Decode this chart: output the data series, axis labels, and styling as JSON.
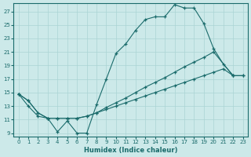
{
  "xlabel": "Humidex (Indice chaleur)",
  "background_color": "#cce9e9",
  "line_color": "#1a6b6b",
  "grid_color": "#aad4d4",
  "xlim": [
    -0.5,
    23.5
  ],
  "ylim": [
    8.5,
    28.2
  ],
  "xticks": [
    0,
    1,
    2,
    3,
    4,
    5,
    6,
    7,
    8,
    9,
    10,
    11,
    12,
    13,
    14,
    15,
    16,
    17,
    18,
    19,
    20,
    21,
    22,
    23
  ],
  "yticks": [
    9,
    11,
    13,
    15,
    17,
    19,
    21,
    23,
    25,
    27
  ],
  "curve1_x": [
    0,
    1,
    2,
    3,
    4,
    5,
    6,
    7,
    8,
    9,
    10,
    11,
    12,
    13,
    14,
    15,
    16,
    17,
    18,
    19,
    20,
    21,
    22
  ],
  "curve1_y": [
    14.8,
    13.8,
    12.0,
    11.2,
    9.2,
    10.8,
    9.0,
    9.0,
    13.2,
    17.0,
    20.8,
    22.2,
    24.2,
    25.8,
    26.2,
    26.2,
    28.0,
    27.5,
    27.5,
    25.2,
    21.5,
    19.2,
    17.5
  ],
  "curve2_x": [
    0,
    1,
    2,
    3,
    4,
    5,
    6,
    7,
    8,
    9,
    10,
    11,
    12,
    13,
    14,
    15,
    16,
    17,
    18,
    19,
    20,
    22,
    23
  ],
  "curve2_y": [
    14.8,
    13.8,
    12.0,
    11.2,
    11.2,
    11.2,
    11.2,
    11.5,
    12.0,
    12.8,
    13.5,
    14.2,
    15.0,
    15.8,
    16.5,
    17.2,
    18.0,
    18.8,
    19.5,
    20.2,
    21.0,
    17.5,
    17.5
  ],
  "curve3_x": [
    0,
    1,
    2,
    3,
    4,
    5,
    6,
    7,
    8,
    9,
    10,
    11,
    12,
    13,
    14,
    15,
    16,
    17,
    18,
    19,
    20,
    21,
    22,
    23
  ],
  "curve3_y": [
    14.8,
    13.0,
    11.5,
    11.2,
    11.2,
    11.2,
    11.2,
    11.5,
    12.0,
    12.5,
    13.0,
    13.5,
    14.0,
    14.5,
    15.0,
    15.5,
    16.0,
    16.5,
    17.0,
    17.5,
    18.0,
    18.5,
    17.5,
    17.5
  ]
}
